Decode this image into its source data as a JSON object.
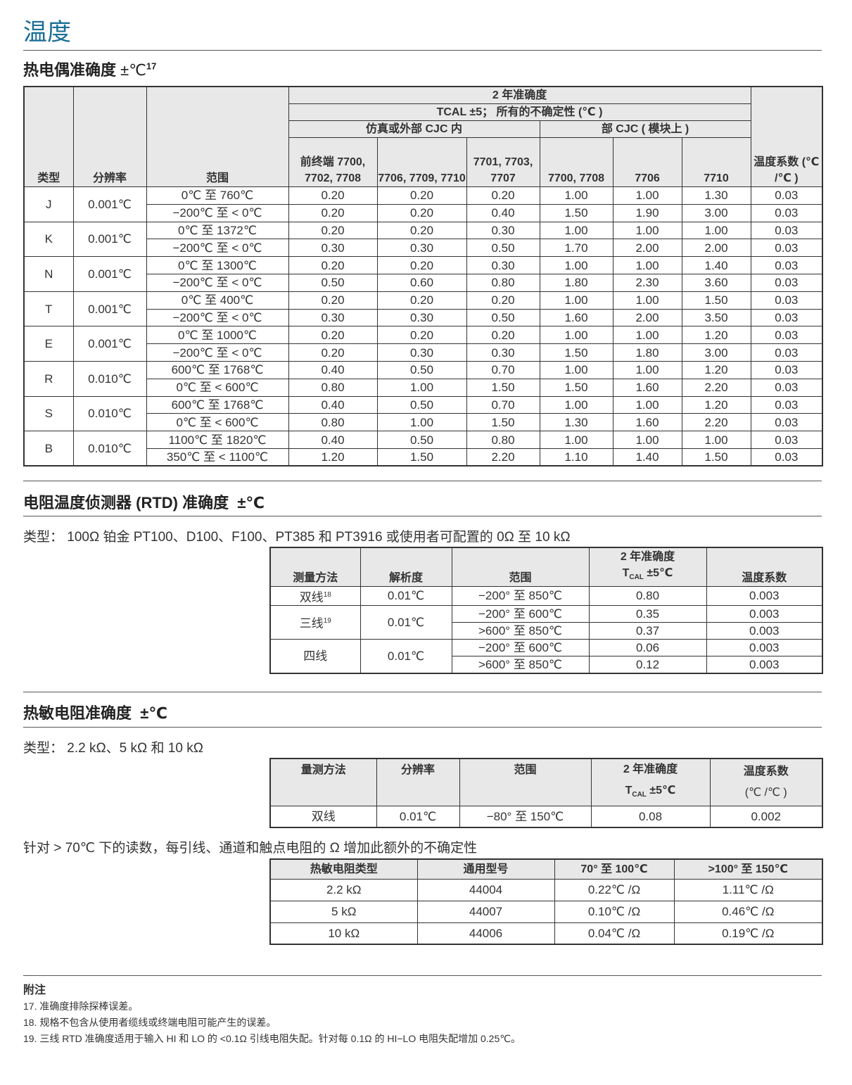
{
  "title": "温度",
  "tc": {
    "heading": "热电偶准确度",
    "unit": "±℃",
    "ref": "17",
    "h": {
      "type": "类型",
      "res": "分辨率",
      "range": "范围",
      "acc": "2 年准确度",
      "tcal": "TCAL ±5； 所有的不确定性 (℃ )",
      "sim": "仿真或外部 CJC 内",
      "cjc": "部 CJC ( 模块上 )",
      "c1": "前终端 7700, 7702, 7708",
      "c2": "7706, 7709, 7710",
      "c3": "7701, 7703, 7707",
      "c4": "7700, 7708",
      "c5": "7706",
      "c6": "7710",
      "coef": "温度系数 (℃ /℃ )"
    },
    "rows": [
      {
        "type": "J",
        "res": "0.001℃",
        "sub": [
          [
            "0℃ 至 760℃",
            "0.20",
            "0.20",
            "0.20",
            "1.00",
            "1.00",
            "1.30",
            "0.03"
          ],
          [
            "−200℃ 至 < 0℃",
            "0.20",
            "0.20",
            "0.40",
            "1.50",
            "1.90",
            "3.00",
            "0.03"
          ]
        ]
      },
      {
        "type": "K",
        "res": "0.001℃",
        "sub": [
          [
            "0℃ 至 1372℃",
            "0.20",
            "0.20",
            "0.30",
            "1.00",
            "1.00",
            "1.00",
            "0.03"
          ],
          [
            "−200℃ 至 < 0℃",
            "0.30",
            "0.30",
            "0.50",
            "1.70",
            "2.00",
            "2.00",
            "0.03"
          ]
        ]
      },
      {
        "type": "N",
        "res": "0.001℃",
        "sub": [
          [
            "0℃ 至 1300℃",
            "0.20",
            "0.20",
            "0.30",
            "1.00",
            "1.00",
            "1.40",
            "0.03"
          ],
          [
            "−200℃ 至 < 0℃",
            "0.50",
            "0.60",
            "0.80",
            "1.80",
            "2.30",
            "3.60",
            "0.03"
          ]
        ]
      },
      {
        "type": "T",
        "res": "0.001℃",
        "sub": [
          [
            "0℃ 至 400℃",
            "0.20",
            "0.20",
            "0.20",
            "1.00",
            "1.00",
            "1.50",
            "0.03"
          ],
          [
            "−200℃ 至 < 0℃",
            "0.30",
            "0.30",
            "0.50",
            "1.60",
            "2.00",
            "3.50",
            "0.03"
          ]
        ]
      },
      {
        "type": "E",
        "res": "0.001℃",
        "sub": [
          [
            "0℃ 至 1000℃",
            "0.20",
            "0.20",
            "0.20",
            "1.00",
            "1.00",
            "1.20",
            "0.03"
          ],
          [
            "−200℃ 至 < 0℃",
            "0.20",
            "0.30",
            "0.30",
            "1.50",
            "1.80",
            "3.00",
            "0.03"
          ]
        ]
      },
      {
        "type": "R",
        "res": "0.010℃",
        "sub": [
          [
            "600℃ 至 1768℃",
            "0.40",
            "0.50",
            "0.70",
            "1.00",
            "1.00",
            "1.20",
            "0.03"
          ],
          [
            "0℃ 至 < 600℃",
            "0.80",
            "1.00",
            "1.50",
            "1.50",
            "1.60",
            "2.20",
            "0.03"
          ]
        ]
      },
      {
        "type": "S",
        "res": "0.010℃",
        "sub": [
          [
            "600℃ 至 1768℃",
            "0.40",
            "0.50",
            "0.70",
            "1.00",
            "1.00",
            "1.20",
            "0.03"
          ],
          [
            "0℃ 至 < 600℃",
            "0.80",
            "1.00",
            "1.50",
            "1.30",
            "1.60",
            "2.20",
            "0.03"
          ]
        ]
      },
      {
        "type": "B",
        "res": "0.010℃",
        "sub": [
          [
            "1100℃ 至 1820℃",
            "0.40",
            "0.50",
            "0.80",
            "1.00",
            "1.00",
            "1.00",
            "0.03"
          ],
          [
            "350℃ 至 < 1100℃",
            "1.20",
            "1.50",
            "2.20",
            "1.10",
            "1.40",
            "1.50",
            "0.03"
          ]
        ]
      }
    ]
  },
  "rtd": {
    "heading": "电阻温度侦测器 (RTD) 准确度",
    "unit": "±℃",
    "type_text": "类型： 100Ω 铂金 PT100、D100、F100、PT385 和 PT3916 或使用者可配置的 0Ω 至 10 kΩ",
    "h": {
      "method": "测量方法",
      "res": "解析度",
      "range": "范围",
      "acc": "2 年准确度",
      "tcal": "T",
      "tcal_sub": "CAL",
      "tcal_val": " ±5℃",
      "coef": "温度系数"
    },
    "rows": [
      {
        "method": "双线",
        "ref": "18",
        "res": "0.01℃",
        "sub": [
          [
            "−200°  至 850℃",
            "0.80",
            "0.003"
          ]
        ]
      },
      {
        "method": "三线",
        "ref": "19",
        "res": "0.01℃",
        "sub": [
          [
            "−200°  至 600℃",
            "0.35",
            "0.003"
          ],
          [
            ">600°  至 850℃",
            "0.37",
            "0.003"
          ]
        ]
      },
      {
        "method": "四线",
        "ref": "",
        "res": "0.01℃",
        "sub": [
          [
            "−200°  至 600℃",
            "0.06",
            "0.003"
          ],
          [
            ">600°  至 850℃",
            "0.12",
            "0.003"
          ]
        ]
      }
    ]
  },
  "th": {
    "heading": "热敏电阻准确度",
    "unit": "±℃",
    "type_text": "类型： 2.2 kΩ、5 kΩ 和 10 kΩ",
    "h": {
      "method": "量测方法",
      "res": "分辨率",
      "range": "范围",
      "acc": "2 年准确度",
      "tcal": "T",
      "tcal_sub": "CAL",
      "tcal_val": " ±5℃",
      "coef": "温度系数",
      "coef_unit": "(℃ /℃ )"
    },
    "row": {
      "method": "双线",
      "res": "0.01℃",
      "range": "−80°  至 150℃",
      "acc": "0.08",
      "coef": "0.002"
    },
    "extra_text": "针对 > 70℃ 下的读数，每引线、通道和触点电阻的 Ω 增加此额外的不确定性",
    "extra": {
      "h": [
        "热敏电阻类型",
        "通用型号",
        "70°  至 100℃",
        ">100°  至 150℃"
      ],
      "rows": [
        [
          "2.2 kΩ",
          "44004",
          "0.22℃ /Ω",
          "1.11℃ /Ω"
        ],
        [
          "5 kΩ",
          "44007",
          "0.10℃ /Ω",
          "0.46℃ /Ω"
        ],
        [
          "10 kΩ",
          "44006",
          "0.04℃ /Ω",
          "0.19℃ /Ω"
        ]
      ]
    }
  },
  "notes": {
    "title": "附注",
    "items": [
      "17. 准确度排除探棒误差。",
      "18. 规格不包含从使用者缆线或终端电阻可能产生的误差。",
      "19. 三线 RTD 准确度适用于输入 HI 和 LO 的 <0.1Ω 引线电阻失配。针对每 0.1Ω 的 HI−LO 电阻失配增加 0.25℃。"
    ]
  }
}
